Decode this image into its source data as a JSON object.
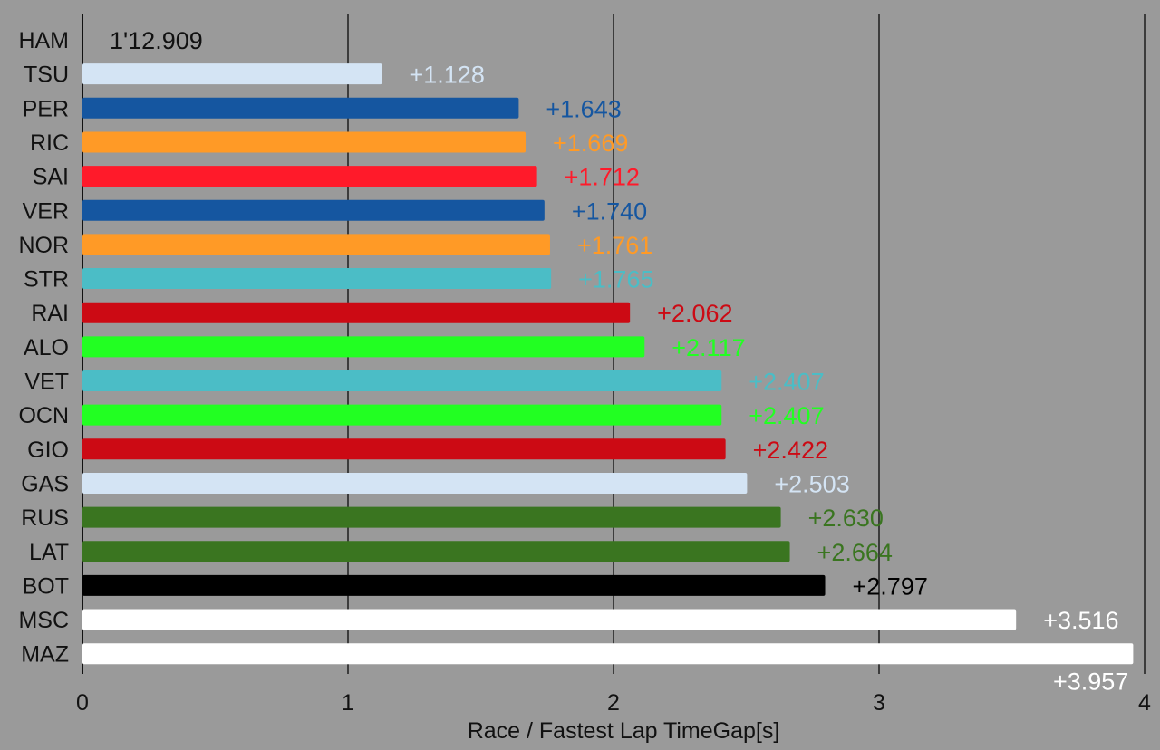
{
  "chart_data": {
    "type": "bar",
    "orientation": "horizontal",
    "xlabel": "Race / Fastest Lap TimeGap[s]",
    "ylabel": "",
    "xlim": [
      0,
      4
    ],
    "xticks": [
      "0",
      "1",
      "2",
      "3",
      "4"
    ],
    "grid": "vertical",
    "categories": [
      "HAM",
      "TSU",
      "PER",
      "RIC",
      "SAI",
      "VER",
      "NOR",
      "STR",
      "RAI",
      "ALO",
      "VET",
      "OCN",
      "GIO",
      "GAS",
      "RUS",
      "LAT",
      "BOT",
      "MSC",
      "MAZ"
    ],
    "values": [
      0,
      1.128,
      1.643,
      1.669,
      1.712,
      1.74,
      1.761,
      1.765,
      2.062,
      2.117,
      2.407,
      2.407,
      2.422,
      2.503,
      2.63,
      2.664,
      2.797,
      3.516,
      3.957
    ],
    "labels": [
      "1'12.909",
      "+1.128",
      "+1.643",
      "+1.669",
      "+1.712",
      "+1.740",
      "+1.761",
      "+1.765",
      "+2.062",
      "+2.117",
      "+2.407",
      "+2.407",
      "+2.422",
      "+2.503",
      "+2.630",
      "+2.664",
      "+2.797",
      "+3.516",
      "+3.957"
    ],
    "colors": [
      "#1a1a1a",
      "#d4e4f4",
      "#1556a0",
      "#ff9a26",
      "#ff1a2a",
      "#1556a0",
      "#ff9a26",
      "#4bbdc6",
      "#cc0a14",
      "#22ff22",
      "#4bbdc6",
      "#22ff22",
      "#cc0a14",
      "#d4e4f4",
      "#3a7520",
      "#3a7520",
      "#000000",
      "#ffffff",
      "#ffffff"
    ]
  }
}
